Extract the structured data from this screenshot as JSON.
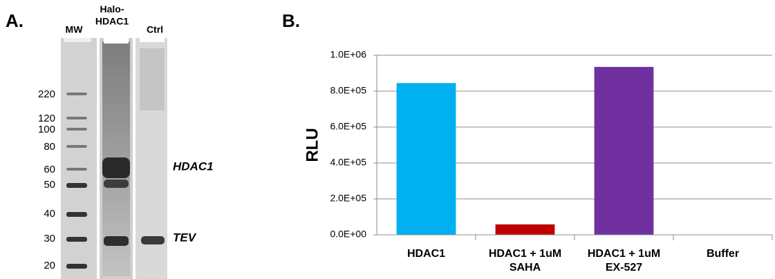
{
  "panel_a": {
    "label": "A.",
    "lanes": [
      "MW",
      "Halo-\nHDAC1",
      "Ctrl"
    ],
    "mw_markers": [
      220,
      120,
      100,
      80,
      60,
      50,
      40,
      30,
      20
    ],
    "band_labels": [
      "HDAC1",
      "TEV"
    ]
  },
  "chart_data": {
    "type": "bar",
    "panel_label": "B.",
    "y_label": "RLU",
    "categories": [
      "HDAC1",
      "HDAC1 + 1uM\nSAHA",
      "HDAC1 + 1uM\nEX-527",
      "Buffer"
    ],
    "values": [
      845000,
      58000,
      935000,
      0
    ],
    "colors": [
      "#00b0f0",
      "#c00000",
      "#7030a0",
      "#7f7f7f"
    ],
    "ylim": [
      0,
      1000000
    ],
    "yticks": [
      {
        "value": 0,
        "label": "0.0E+00"
      },
      {
        "value": 200000,
        "label": "2.0E+05"
      },
      {
        "value": 400000,
        "label": "4.0E+05"
      },
      {
        "value": 600000,
        "label": "6.0E+05"
      },
      {
        "value": 800000,
        "label": "8.0E+05"
      },
      {
        "value": 1000000,
        "label": "1.0E+06"
      }
    ],
    "grid": true
  }
}
